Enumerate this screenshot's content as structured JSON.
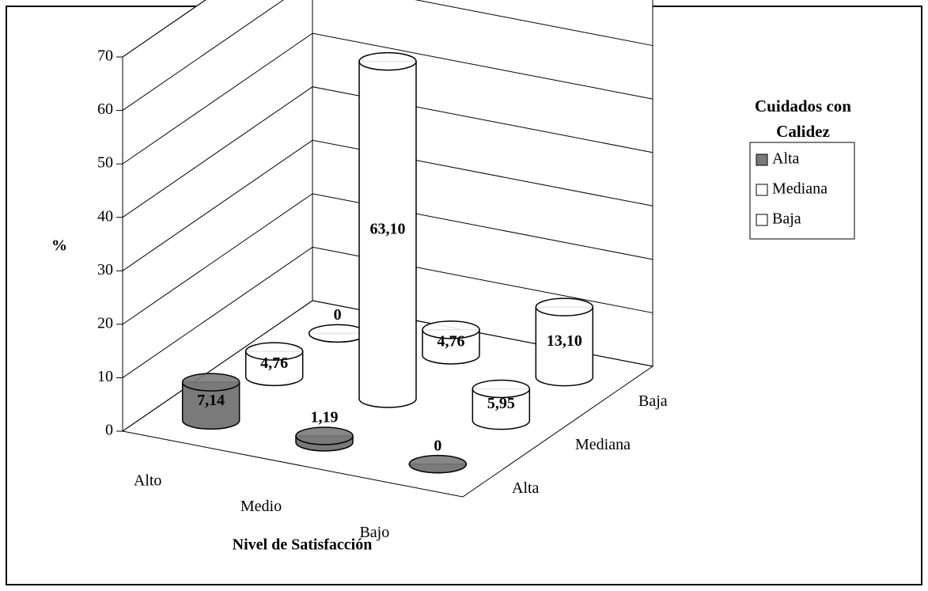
{
  "chart_data": {
    "type": "bar3d",
    "ylabel": "%",
    "xlabel": "Nivel de Satisfacción",
    "legend_title": "Cuidados con Calidez",
    "categories": [
      "Alto",
      "Medio",
      "Bajo"
    ],
    "series": [
      {
        "name": "Alta",
        "color": "#7a7a7a",
        "values": [
          7.14,
          1.19,
          0
        ],
        "value_labels": [
          "7,14",
          "1,19",
          "0"
        ]
      },
      {
        "name": "Mediana",
        "color": "#ffffff",
        "values": [
          4.76,
          63.1,
          5.95
        ],
        "value_labels": [
          "4,76",
          "63,10",
          "5,95"
        ]
      },
      {
        "name": "Baja",
        "color": "#ffffff",
        "values": [
          0,
          4.76,
          13.1
        ],
        "value_labels": [
          "0",
          "4,76",
          "13,10"
        ]
      }
    ],
    "ylim": [
      0,
      70
    ],
    "yticks": [
      0,
      10,
      20,
      30,
      40,
      50,
      60,
      70
    ],
    "grid": true
  }
}
